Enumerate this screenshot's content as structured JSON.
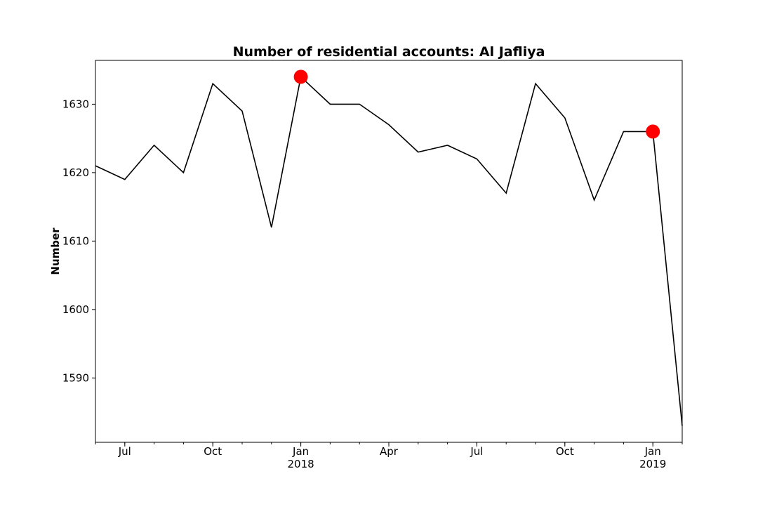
{
  "chart_data": {
    "type": "line",
    "title": "Number of residential accounts: Al Jafliya",
    "xlabel": "",
    "ylabel": "Number",
    "x": [
      "2017-06",
      "2017-07",
      "2017-08",
      "2017-09",
      "2017-10",
      "2017-11",
      "2017-12",
      "2018-01",
      "2018-02",
      "2018-03",
      "2018-04",
      "2018-05",
      "2018-06",
      "2018-07",
      "2018-08",
      "2018-09",
      "2018-10",
      "2018-11",
      "2018-12",
      "2019-01",
      "2019-02"
    ],
    "series": [
      {
        "values": [
          1621,
          1619,
          1624,
          1620,
          1633,
          1629,
          1612,
          1634,
          1630,
          1630,
          1627,
          1623,
          1624,
          1622,
          1617,
          1633,
          1628,
          1616,
          1626,
          1626,
          1583
        ],
        "color": "#000000"
      }
    ],
    "highlighted_points": [
      {
        "x": "2018-01",
        "y": 1634,
        "color": "#ff0000"
      },
      {
        "x": "2019-01",
        "y": 1626,
        "color": "#ff0000"
      }
    ],
    "xlim": [
      "2017-06",
      "2019-02"
    ],
    "ylim": [
      1580.6,
      1636.4
    ],
    "yticks": [
      1590,
      1600,
      1610,
      1620,
      1630
    ],
    "xticks_major": [
      {
        "x": "2017-07",
        "label": "Jul",
        "sublabel": ""
      },
      {
        "x": "2017-10",
        "label": "Oct",
        "sublabel": ""
      },
      {
        "x": "2018-01",
        "label": "Jan",
        "sublabel": "2018"
      },
      {
        "x": "2018-04",
        "label": "Apr",
        "sublabel": ""
      },
      {
        "x": "2018-07",
        "label": "Jul",
        "sublabel": ""
      },
      {
        "x": "2018-10",
        "label": "Oct",
        "sublabel": ""
      },
      {
        "x": "2019-01",
        "label": "Jan",
        "sublabel": "2019"
      }
    ],
    "grid": false,
    "legend": "none"
  }
}
